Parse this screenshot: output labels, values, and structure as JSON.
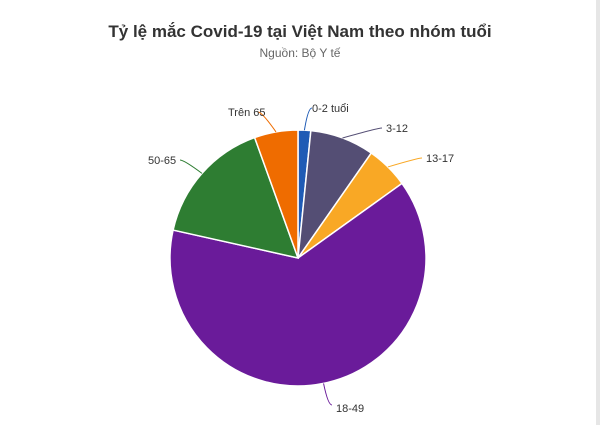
{
  "chart_data": {
    "type": "pie",
    "title": "Tỷ lệ mắc Covid-19 tại Việt Nam theo nhóm tuổi",
    "subtitle": "Nguồn: Bộ Y tế",
    "categories": [
      "0-2 tuổi",
      "3-12",
      "13-17",
      "18-49",
      "50-65",
      "Trên 65"
    ],
    "values": [
      1.6,
      8.1,
      5.4,
      63.4,
      16.0,
      5.5
    ],
    "colors": [
      "#1f5bb5",
      "#544e74",
      "#f9a825",
      "#6a1b9a",
      "#2e7d32",
      "#ef6c00"
    ]
  }
}
